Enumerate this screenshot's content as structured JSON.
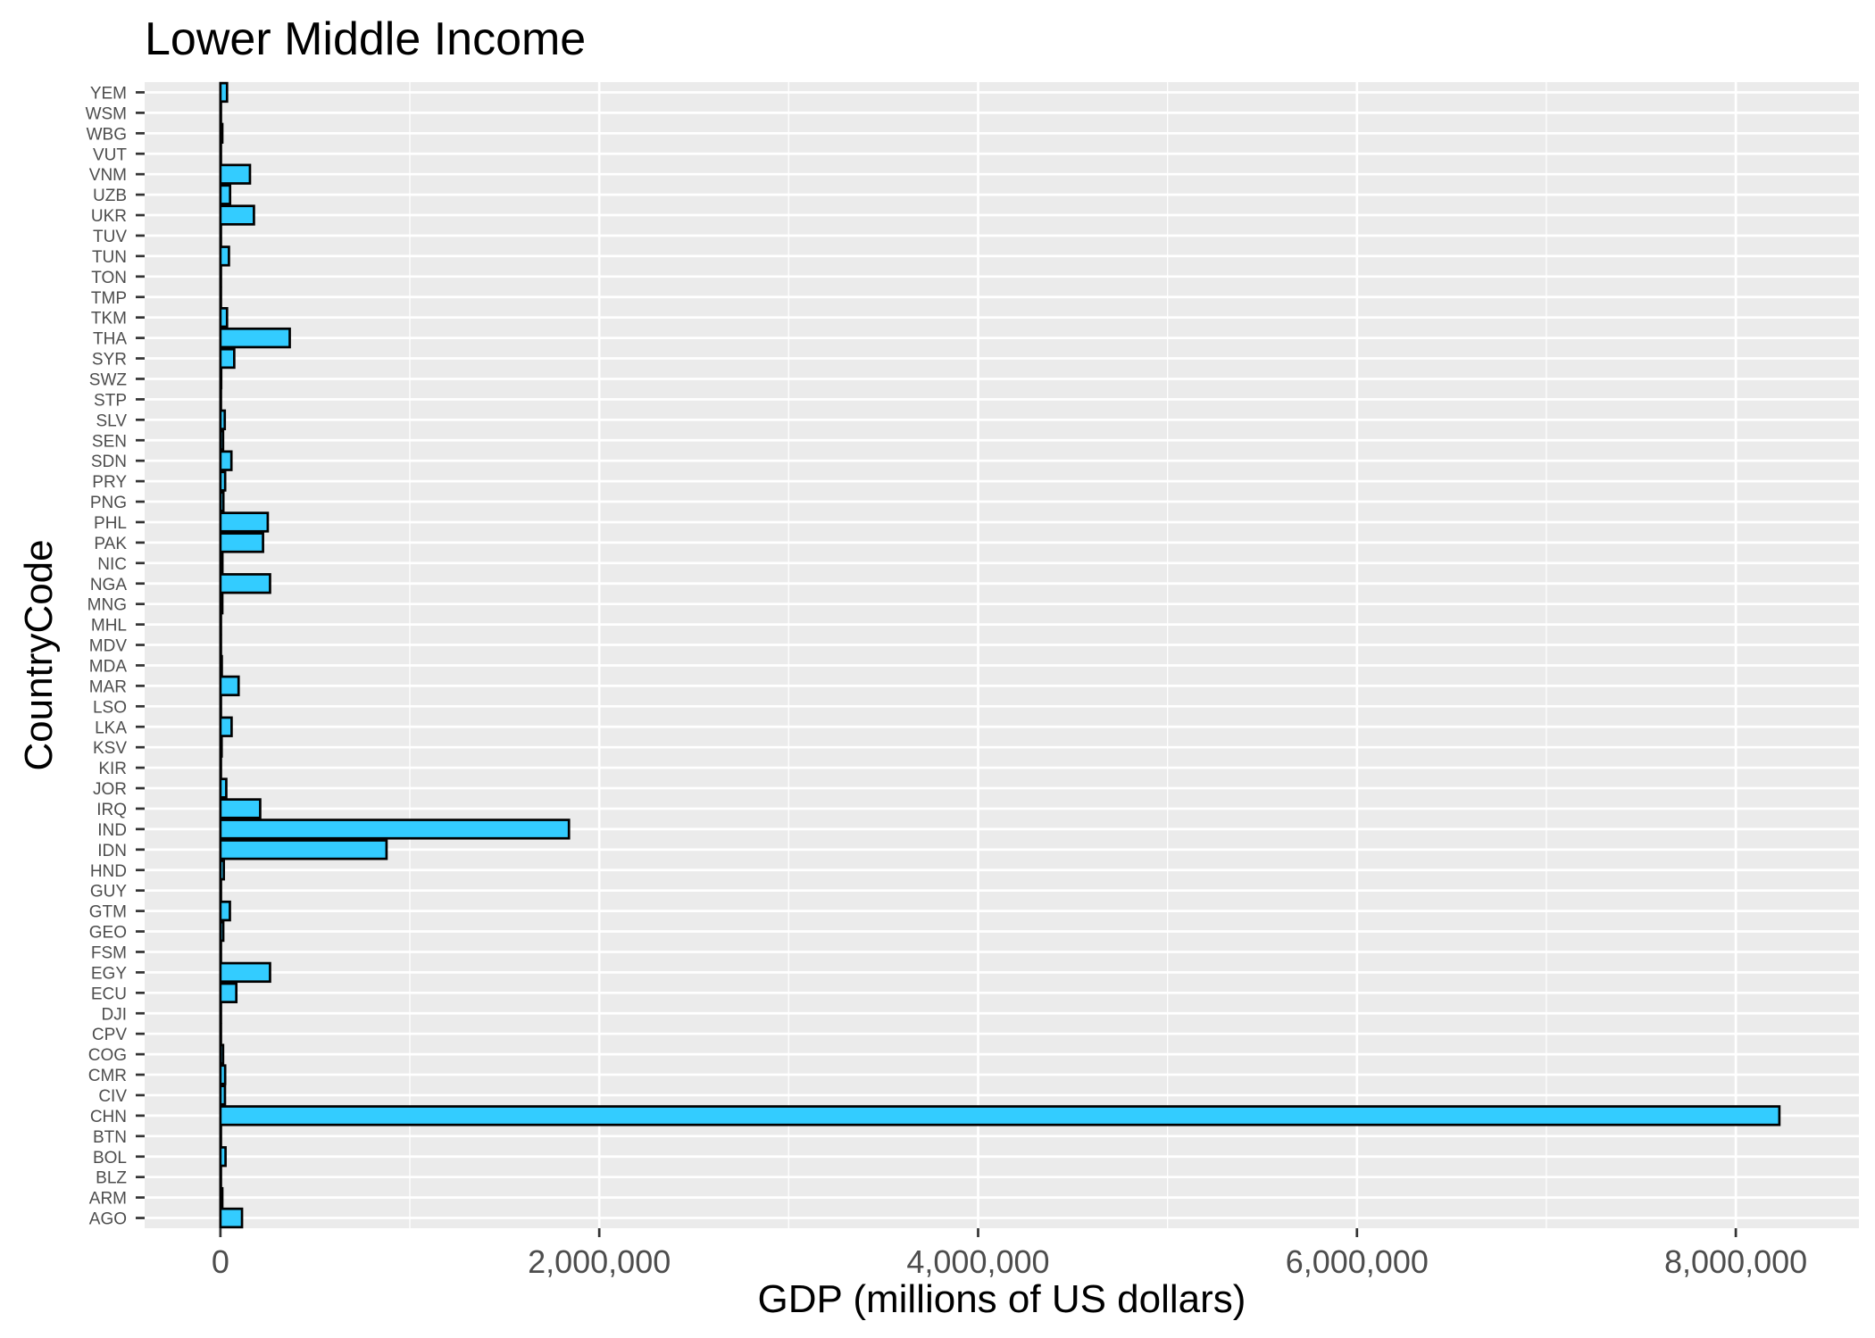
{
  "chart_data": {
    "type": "bar",
    "orientation": "horizontal",
    "title": "Lower Middle Income",
    "xlabel": "GDP (millions of US dollars)",
    "ylabel": "CountryCode",
    "xlim": [
      -400000,
      8650000
    ],
    "xticks": [
      0,
      2000000,
      4000000,
      6000000,
      8000000
    ],
    "xtick_labels": [
      "0",
      "2,000,000",
      "4,000,000",
      "6,000,000",
      "8,000,000"
    ],
    "grid": true,
    "legend": "none",
    "categories": [
      "AGO",
      "ARM",
      "BLZ",
      "BOL",
      "BTN",
      "CHN",
      "CIV",
      "CMR",
      "COG",
      "CPV",
      "DJI",
      "ECU",
      "EGY",
      "FSM",
      "GEO",
      "GTM",
      "GUY",
      "HND",
      "IDN",
      "IND",
      "IRQ",
      "JOR",
      "KIR",
      "KSV",
      "LKA",
      "LSO",
      "MAR",
      "MDA",
      "MDV",
      "MHL",
      "MNG",
      "NGA",
      "NIC",
      "PAK",
      "PHL",
      "PNG",
      "PRY",
      "SDN",
      "SEN",
      "SLV",
      "STP",
      "SWZ",
      "SYR",
      "THA",
      "TKM",
      "TMP",
      "TON",
      "TUN",
      "TUV",
      "UKR",
      "UZB",
      "VNM",
      "VUT",
      "WBG",
      "WSM",
      "YEM"
    ],
    "values": [
      114000,
      10000,
      1500,
      27000,
      1800,
      8230000,
      24000,
      25000,
      14000,
      1800,
      1400,
      84000,
      262000,
      300,
      15000,
      50000,
      2900,
      18000,
      877000,
      1840000,
      210000,
      31000,
      200,
      6400,
      59000,
      2300,
      96000,
      7300,
      2200,
      200,
      10000,
      262000,
      10500,
      225000,
      250000,
      15600,
      25000,
      58000,
      14000,
      23000,
      260,
      4100,
      73000,
      366000,
      35000,
      1300,
      400,
      45000,
      40,
      177000,
      51000,
      156000,
      800,
      10000,
      700,
      35000
    ],
    "colors": {
      "bar_fill": "#33CCFF",
      "bar_stroke": "#000000",
      "panel": "#EBEBEB",
      "grid": "#FFFFFF",
      "tick_text": "#4D4D4D"
    }
  }
}
